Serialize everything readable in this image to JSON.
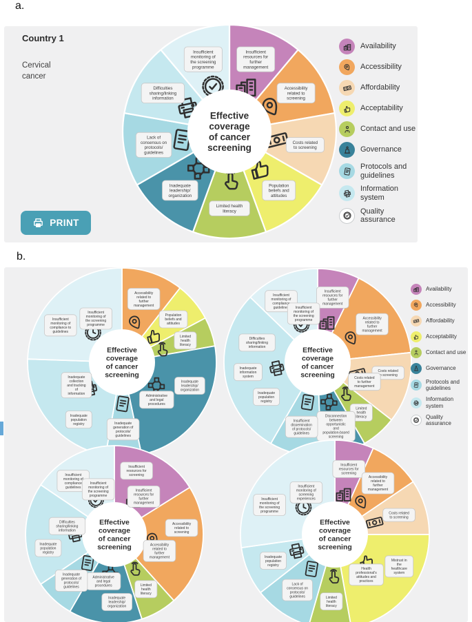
{
  "page": {
    "panel_a_label": "a.",
    "panel_b_label": "b."
  },
  "panel_a": {
    "country": "Country 1",
    "cancer_type": "Cervical cancer",
    "print_label": "PRINT"
  },
  "legend": {
    "items": [
      {
        "label": "Availability",
        "color": "#c584ba",
        "icon": "building-icon"
      },
      {
        "label": "Accessibility",
        "color": "#f1a75e",
        "icon": "pin-icon"
      },
      {
        "label": "Affordability",
        "color": "#f6d8b3",
        "icon": "banknote-icon"
      },
      {
        "label": "Acceptability",
        "color": "#eeee6d",
        "icon": "thumbsup-icon"
      },
      {
        "label": "Contact and use",
        "color": "#b6cd5f",
        "icon": "person-icon"
      },
      {
        "label": "Governance",
        "color": "#39829a",
        "icon": "podium-icon"
      },
      {
        "label": "Protocols and guidelines",
        "color": "#a6d9e3",
        "icon": "document-icon"
      },
      {
        "label": "Information system",
        "color": "#c5e8ef",
        "icon": "printer-icon"
      },
      {
        "label": "Quality assurance",
        "color": "#ffffff",
        "icon": "badge-check-icon"
      }
    ]
  },
  "chart_data": [
    {
      "type": "pie",
      "slot": "a",
      "title": "Country 1 — Cervical cancer",
      "center_label": "Effective coverage of cancer screening",
      "unit": "degrees",
      "segments": [
        {
          "category": "Availability",
          "color": "#c584ba",
          "value": 40,
          "icon": "building-icon",
          "labels": [
            "Insufficient resources for further management"
          ]
        },
        {
          "category": "Accessibility",
          "color": "#f1a75e",
          "value": 40,
          "icon": "pin-icon",
          "labels": [
            "Accessibility related to screening"
          ]
        },
        {
          "category": "Affordability",
          "color": "#f6d8b3",
          "value": 40,
          "icon": "banknote-icon",
          "labels": [
            "Costs related to screening"
          ]
        },
        {
          "category": "Acceptability",
          "color": "#eeee6d",
          "value": 40,
          "icon": "thumbsup-icon",
          "labels": [
            "Population beliefs and attitudes"
          ]
        },
        {
          "category": "Contact and use",
          "color": "#b6cd5f",
          "value": 40,
          "icon": "tap-icon",
          "labels": [
            "Limited health literacy"
          ]
        },
        {
          "category": "Governance",
          "color": "#4a93a9",
          "value": 40,
          "icon": "flowchart-icon",
          "labels": [
            "Inadequate leadership/ organization"
          ]
        },
        {
          "category": "Protocols and guidelines",
          "color": "#a6d9e3",
          "value": 40,
          "icon": "document-icon",
          "labels": [
            "Lack of consensus on protocols/ guidelines"
          ]
        },
        {
          "category": "Information system",
          "color": "#c5e8ef",
          "value": 40,
          "icon": "printer-icon",
          "labels": [
            "Difficulties sharing/linking information"
          ]
        },
        {
          "category": "Quality assurance",
          "color": "#def1f6",
          "value": 40,
          "icon": "badge-check-icon",
          "labels": [
            "Insufficient monitoring of the screening programme"
          ]
        }
      ]
    },
    {
      "type": "pie",
      "slot": "b1",
      "center_label": "Effective coverage of cancer screening",
      "unit": "degrees",
      "segments": [
        {
          "category": "Accessibility",
          "color": "#f1a75e",
          "value": 38,
          "icon": "pin-icon",
          "labels": [
            "Accessibility related to further management"
          ]
        },
        {
          "category": "Acceptability",
          "color": "#eeee6d",
          "value": 24,
          "icon": "thumbsup-icon",
          "labels": [
            "Population beliefs and attitudes"
          ]
        },
        {
          "category": "Contact and use",
          "color": "#b6cd5f",
          "value": 18,
          "icon": "tap-icon",
          "labels": [
            "Limited health literacy"
          ]
        },
        {
          "category": "Governance",
          "color": "#4a93a9",
          "value": 88,
          "icon": "flowchart-icon",
          "labels": [
            "Inadequate leadership/ organization",
            "Administrative and legal procedures"
          ]
        },
        {
          "category": "Protocols and guidelines",
          "color": "#a6d9e3",
          "value": 22,
          "icon": "document-icon",
          "labels": [
            "Inadequate generation of protocols/ guidelines"
          ]
        },
        {
          "category": "Information system",
          "color": "#c5e8ef",
          "value": 82,
          "icon": "printer-icon",
          "labels": [
            "Inadequate population registry",
            "Inadequate collection and tracking of information"
          ]
        },
        {
          "category": "Quality assurance",
          "color": "#def1f6",
          "value": 88,
          "icon": "badge-clock-icon",
          "labels": [
            "Insufficient monitoring of compliance to guidelines",
            "Insufficient monitoring of the screening programme"
          ]
        }
      ]
    },
    {
      "type": "pie",
      "slot": "b2",
      "center_label": "Effective coverage of cancer screening",
      "unit": "degrees",
      "segments": [
        {
          "category": "Availability",
          "color": "#c584ba",
          "value": 26,
          "icon": "building-icon",
          "labels": [
            "Insufficient resources for further management"
          ]
        },
        {
          "category": "Accessibility",
          "color": "#f1a75e",
          "value": 58,
          "icon": "pin-icon",
          "labels": [
            "Accessibility related to further management"
          ]
        },
        {
          "category": "Affordability",
          "color": "#f6d8b3",
          "value": 44,
          "icon": "banknote-icon",
          "labels": [
            "Costs related to screening",
            "Costs related to further management"
          ]
        },
        {
          "category": "Contact and use",
          "color": "#b6cd5f",
          "value": 22,
          "icon": "tap-icon",
          "labels": [
            "Limited health literacy"
          ]
        },
        {
          "category": "Governance",
          "color": "#4a93a9",
          "value": 28,
          "icon": "flowchart-icon",
          "labels": [
            "Disconnection between opportunistic and population-based screening"
          ]
        },
        {
          "category": "Protocols and guidelines",
          "color": "#a6d9e3",
          "value": 32,
          "icon": "document-icon",
          "labels": [
            "Insufficient dissemination of protocols/ guidelines"
          ]
        },
        {
          "category": "Information system",
          "color": "#c5e8ef",
          "value": 104,
          "icon": "printer-icon",
          "labels": [
            "Inadequate population registry",
            "Inadequate information system",
            "Difficulties sharing/linking information"
          ]
        },
        {
          "category": "Quality assurance",
          "color": "#def1f6",
          "value": 46,
          "icon": "badge-check-icon",
          "labels": [
            "Insufficient monitoring of compliance guidelines",
            "Insufficient monitoring of the screening programme"
          ]
        }
      ]
    },
    {
      "type": "pie",
      "slot": "b3",
      "center_label": "Effective coverage of cancer screening",
      "unit": "degrees",
      "segments": [
        {
          "category": "Availability",
          "color": "#c584ba",
          "value": 58,
          "icon": "building-icon",
          "labels": [
            "Insufficient resources for screening",
            "Insufficient resources for further management"
          ]
        },
        {
          "category": "Accessibility",
          "color": "#f1a75e",
          "value": 80,
          "icon": "pin-icon",
          "labels": [
            "Accessibility related to screening",
            "Accessibility related to further management"
          ]
        },
        {
          "category": "Contact and use",
          "color": "#b6cd5f",
          "value": 24,
          "icon": "tap-icon",
          "labels": [
            "Limited health literacy"
          ]
        },
        {
          "category": "Governance",
          "color": "#4a93a9",
          "value": 48,
          "icon": "flowchart-icon",
          "labels": [
            "Inadequate leadership/ organization",
            "Administrative and legal procedures"
          ]
        },
        {
          "category": "Protocols and guidelines",
          "color": "#a6d9e3",
          "value": 26,
          "icon": "document-icon",
          "labels": [
            "Inadequate generation of protocols/ guidelines"
          ]
        },
        {
          "category": "Information system",
          "color": "#c5e8ef",
          "value": 68,
          "icon": "printer-icon",
          "labels": [
            "Inadequate population registry",
            "Difficulties sharing/linking information"
          ]
        },
        {
          "category": "Quality assurance",
          "color": "#def1f6",
          "value": 56,
          "icon": "badge-check-icon",
          "labels": [
            "Insufficient monitoring of compliance guidelines",
            "Insufficient monitoring of the screening programme"
          ]
        }
      ]
    },
    {
      "type": "pie",
      "slot": "b4",
      "center_label": "Effective coverage of cancer screening",
      "unit": "degrees",
      "segments": [
        {
          "category": "Availability",
          "color": "#c584ba",
          "value": 24,
          "icon": "building-icon",
          "labels": [
            "Insufficient resources for screening"
          ]
        },
        {
          "category": "Accessibility",
          "color": "#f1a75e",
          "value": 32,
          "icon": "pin-icon",
          "labels": [
            "Accessibility related to further management"
          ]
        },
        {
          "category": "Affordability",
          "color": "#f6d8b3",
          "value": 34,
          "icon": "banknote-icon",
          "labels": [
            "Costs related to screening"
          ]
        },
        {
          "category": "Acceptability",
          "color": "#eeee6d",
          "value": 80,
          "icon": "thumbsup-icon",
          "labels": [
            "Mistrust in the healthcare system",
            "Health professional's attitudes and practices"
          ]
        },
        {
          "category": "Contact and use",
          "color": "#b6cd5f",
          "value": 26,
          "icon": "tap-icon",
          "labels": [
            "Limited health literacy"
          ]
        },
        {
          "category": "Protocols and guidelines",
          "color": "#a6d9e3",
          "value": 36,
          "icon": "document-icon",
          "labels": [
            "Lack of consensus on protocols/ guidelines"
          ]
        },
        {
          "category": "Information system",
          "color": "#c5e8ef",
          "value": 30,
          "icon": "printer-icon",
          "labels": [
            "Inadequate population registry"
          ]
        },
        {
          "category": "Quality assurance",
          "color": "#def1f6",
          "value": 98,
          "icon": "badge-clock-icon",
          "labels": [
            "Insufficient monitoring of the screening programme",
            "Insufficient monitoring of screening experiences"
          ]
        }
      ]
    }
  ]
}
